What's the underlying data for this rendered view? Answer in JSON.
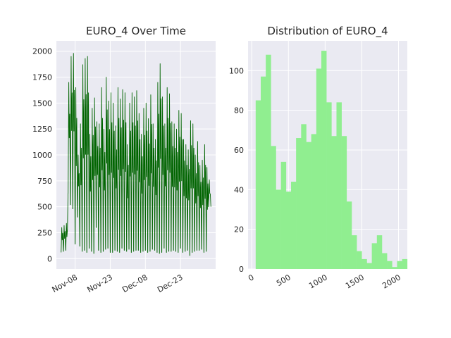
{
  "figure": {
    "background": "#ffffff"
  },
  "chart_data": [
    {
      "type": "line",
      "title": "EURO_4 Over Time",
      "xlabel": "",
      "ylabel": "",
      "color": "#006400",
      "x_range": [
        "2018-10-31",
        "2019-01-07"
      ],
      "ylim": [
        -100,
        2100
      ],
      "x_ticks": [
        {
          "date": "2018-11-08",
          "label": "Nov-08"
        },
        {
          "date": "2018-11-23",
          "label": "Nov-23"
        },
        {
          "date": "2018-12-08",
          "label": "Dec-08"
        },
        {
          "date": "2018-12-23",
          "label": "Dec-23"
        }
      ],
      "y_ticks": [
        0,
        250,
        500,
        750,
        1000,
        1250,
        1500,
        1750,
        2000
      ],
      "grid": true,
      "series_start": "2018-11-02",
      "series_end": "2019-01-05",
      "daily_peaks": [
        300,
        320,
        340,
        1700,
        1950,
        1980,
        1650,
        1000,
        1300,
        1870,
        1930,
        1950,
        1200,
        1450,
        1550,
        1320,
        1300,
        1650,
        1250,
        1750,
        1520,
        1600,
        1500,
        1280,
        1650,
        1540,
        1630,
        1600,
        1100,
        1500,
        1600,
        1560,
        1620,
        1400,
        1200,
        1450,
        1500,
        1350,
        1580,
        1300,
        1150,
        1700,
        1880,
        1560,
        1300,
        1650,
        1590,
        1320,
        1300,
        1250,
        1430,
        1400,
        1150,
        1100,
        1050,
        1330,
        1300,
        1000,
        1130,
        900,
        950,
        1100,
        880,
        760
      ],
      "daily_troughs": [
        60,
        70,
        80,
        630,
        520,
        480,
        140,
        400,
        120,
        70,
        80,
        60,
        100,
        70,
        50,
        300,
        80,
        60,
        70,
        90,
        100,
        60,
        60,
        80,
        70,
        60,
        100,
        80,
        70,
        90,
        60,
        70,
        80,
        80,
        60,
        70,
        80,
        60,
        70,
        90,
        80,
        60,
        50,
        60,
        100,
        60,
        70,
        70,
        80,
        70,
        60,
        100,
        60,
        70,
        80,
        30,
        60,
        70,
        80,
        80,
        90,
        60,
        70,
        500
      ]
    },
    {
      "type": "bar",
      "title": "Distribution of EURO_4",
      "xlabel": "",
      "ylabel": "",
      "color": "#90ee90",
      "bin_start": 54,
      "bin_width": 68.8,
      "counts": [
        85,
        97,
        108,
        62,
        40,
        54,
        39,
        44,
        66,
        73,
        64,
        68,
        101,
        110,
        84,
        67,
        84,
        67,
        34,
        17,
        9,
        5,
        3,
        13,
        17,
        8,
        4,
        1,
        4,
        5
      ],
      "xlim": [
        -50,
        2120
      ],
      "ylim": [
        0,
        115
      ],
      "x_ticks": [
        0,
        500,
        1000,
        1500,
        2000
      ],
      "y_ticks": [
        0,
        20,
        40,
        60,
        80,
        100
      ],
      "grid": true
    }
  ]
}
